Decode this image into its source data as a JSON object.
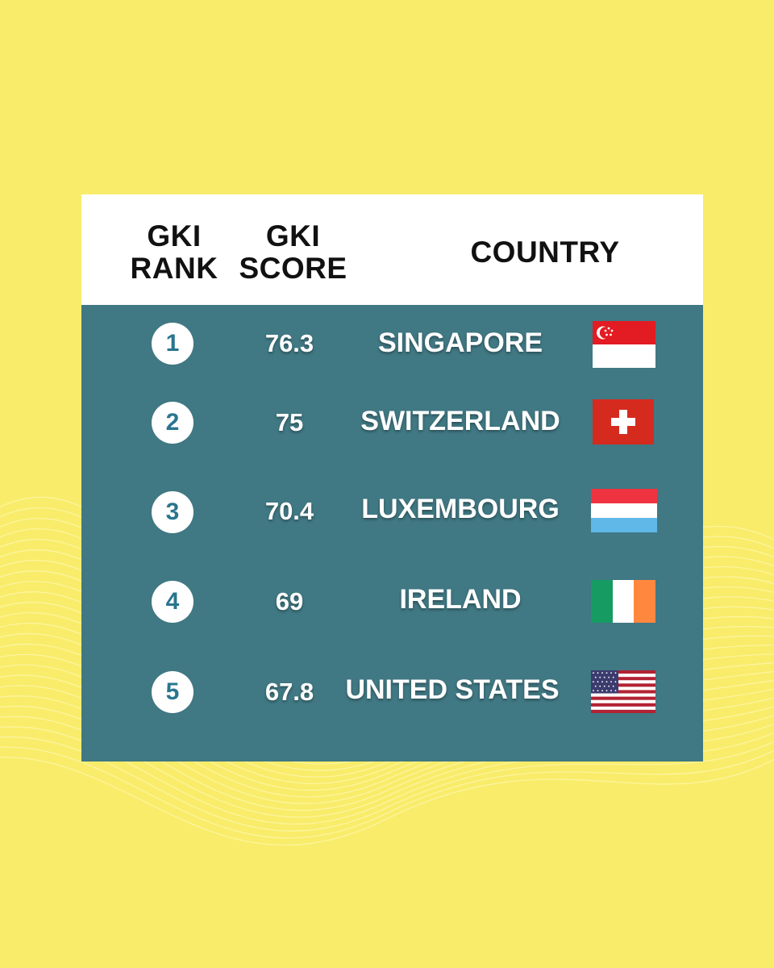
{
  "header": {
    "rank_line1": "GKI",
    "rank_line2": "RANK",
    "score_line1": "GKI",
    "score_line2": "SCORE",
    "country": "COUNTRY"
  },
  "rows": [
    {
      "rank": "1",
      "score": "76.3",
      "country": "SINGAPORE",
      "flag": "singapore-flag"
    },
    {
      "rank": "2",
      "score": "75",
      "country": "SWITZERLAND",
      "flag": "switzerland-flag"
    },
    {
      "rank": "3",
      "score": "70.4",
      "country": "LUXEMBOURG",
      "flag": "luxembourg-flag"
    },
    {
      "rank": "4",
      "score": "69",
      "country": "IRELAND",
      "flag": "ireland-flag"
    },
    {
      "rank": "5",
      "score": "67.8",
      "country": "UNITED STATES",
      "flag": "united-states-flag"
    }
  ],
  "colors": {
    "background": "#f8ec6a",
    "panel": "#3a7484",
    "rank_text": "#2a7590"
  }
}
